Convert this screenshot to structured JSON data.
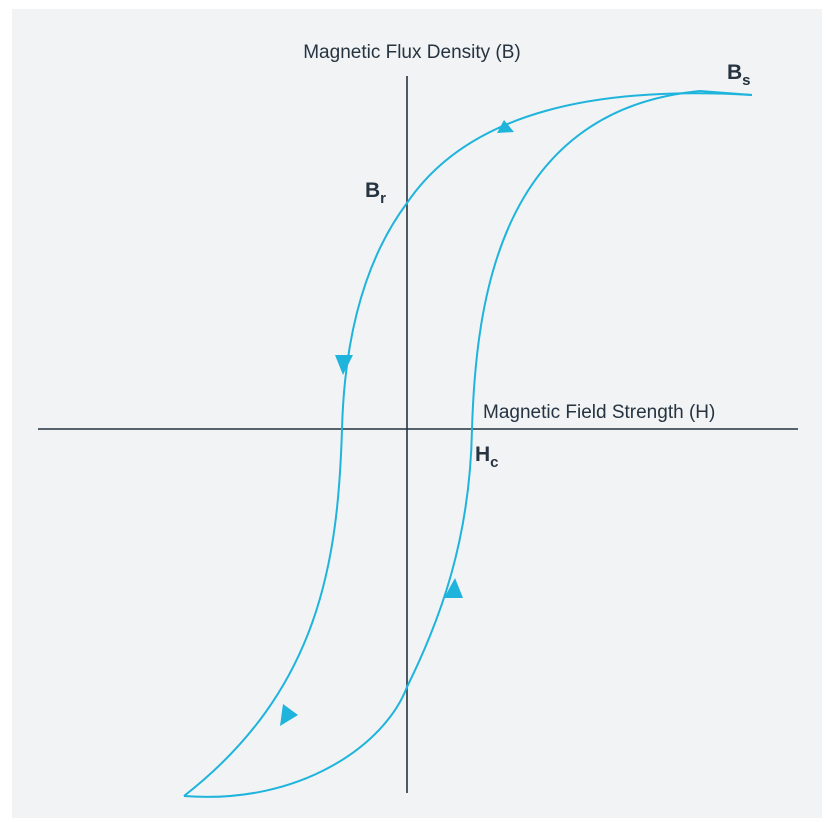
{
  "diagram": {
    "y_axis_label": "Magnetic Flux Density (B)",
    "x_axis_label": "Magnetic Field Strength (H)",
    "points": {
      "saturation": {
        "main": "B",
        "sub": "s"
      },
      "remanence": {
        "main": "B",
        "sub": "r"
      },
      "coercivity": {
        "main": "H",
        "sub": "c"
      }
    }
  },
  "colors": {
    "background": "#f1f3f5",
    "axis": "#263340",
    "curve": "#1fb4dc",
    "text": "#263340"
  }
}
